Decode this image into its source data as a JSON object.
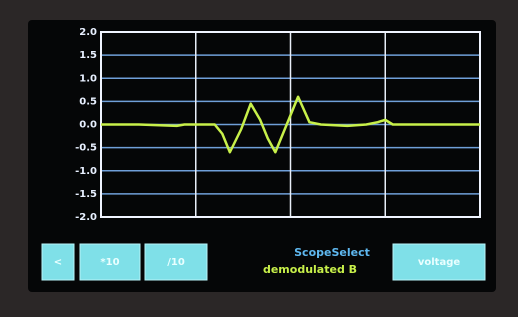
{
  "chart_data": {
    "type": "line",
    "x": [
      0,
      10,
      20,
      22,
      25,
      30,
      32,
      34,
      37,
      39.5,
      42,
      44,
      46,
      49,
      52,
      55,
      58,
      65,
      70,
      73,
      75,
      77,
      80,
      90,
      100
    ],
    "series": [
      {
        "name": "demodulated B",
        "color": "#c8f04a",
        "values": [
          0,
          0,
          -0.03,
          0,
          0,
          0,
          -0.2,
          -0.6,
          -0.1,
          0.45,
          0.1,
          -0.3,
          -0.6,
          0,
          0.6,
          0.05,
          0,
          -0.03,
          0,
          0.05,
          0.1,
          0,
          0,
          0,
          0
        ]
      }
    ],
    "xlim": [
      0,
      100
    ],
    "xticks": [
      25,
      50,
      75
    ],
    "ylim": [
      -2,
      2
    ],
    "yticks": [
      {
        "value": -2,
        "label": "-2.0"
      },
      {
        "value": -1.5,
        "label": "-1.5"
      },
      {
        "value": -1,
        "label": "-1.0"
      },
      {
        "value": -0.5,
        "label": "-0.5"
      },
      {
        "value": 0,
        "label": "0.0"
      },
      {
        "value": 0.5,
        "label": "0.5"
      },
      {
        "value": 1,
        "label": "1.0"
      },
      {
        "value": 1.5,
        "label": "1.5"
      },
      {
        "value": 2,
        "label": "2.0"
      }
    ],
    "grid": true
  },
  "ui": {
    "buttons": [
      "<",
      "*10",
      "/10",
      "voltage"
    ],
    "scope_label": "ScopeSelect"
  }
}
